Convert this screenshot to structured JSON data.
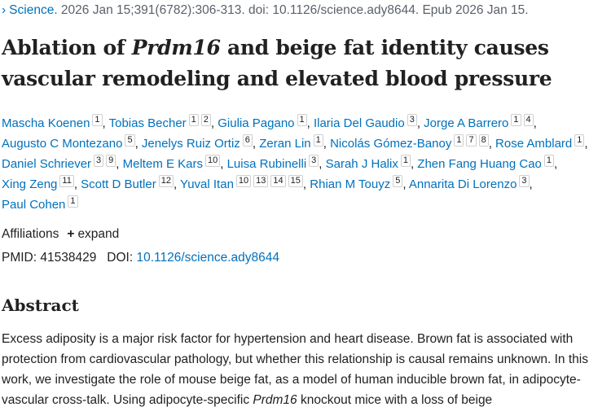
{
  "citation": {
    "journal": "Science.",
    "details": " 2026 Jan 15;391(6782):306-313. doi: 10.1126/science.ady8644. Epub 2026 Jan 15."
  },
  "title": {
    "before": "Ablation of ",
    "gene": "Prdm16",
    "after": " and beige fat identity causes vascular remodeling and elevated blood pressure"
  },
  "authors": [
    {
      "name": "Mascha Koenen",
      "affiliations": [
        "1"
      ]
    },
    {
      "name": "Tobias Becher",
      "affiliations": [
        "1",
        "2"
      ]
    },
    {
      "name": "Giulia Pagano",
      "affiliations": [
        "1"
      ]
    },
    {
      "name": "Ilaria Del Gaudio",
      "affiliations": [
        "3"
      ]
    },
    {
      "name": "Jorge A Barrero",
      "affiliations": [
        "1",
        "4"
      ]
    },
    {
      "name": "Augusto C Montezano",
      "affiliations": [
        "5"
      ]
    },
    {
      "name": "Jenelys Ruiz Ortiz",
      "affiliations": [
        "6"
      ]
    },
    {
      "name": "Zeran Lin",
      "affiliations": [
        "1"
      ]
    },
    {
      "name": "Nicolás Gómez-Banoy",
      "affiliations": [
        "1",
        "7",
        "8"
      ]
    },
    {
      "name": "Rose Amblard",
      "affiliations": [
        "1"
      ]
    },
    {
      "name": "Daniel Schriever",
      "affiliations": [
        "3",
        "9"
      ]
    },
    {
      "name": "Meltem E Kars",
      "affiliations": [
        "10"
      ]
    },
    {
      "name": "Luisa Rubinelli",
      "affiliations": [
        "3"
      ]
    },
    {
      "name": "Sarah J Halix",
      "affiliations": [
        "1"
      ]
    },
    {
      "name": "Zhen Fang Huang Cao",
      "affiliations": [
        "1"
      ]
    },
    {
      "name": "Xing Zeng",
      "affiliations": [
        "11"
      ]
    },
    {
      "name": "Scott D Butler",
      "affiliations": [
        "12"
      ]
    },
    {
      "name": "Yuval Itan",
      "affiliations": [
        "10",
        "13",
        "14",
        "15"
      ]
    },
    {
      "name": "Rhian M Touyz",
      "affiliations": [
        "5"
      ]
    },
    {
      "name": "Annarita Di Lorenzo",
      "affiliations": [
        "3"
      ]
    },
    {
      "name": "Paul Cohen",
      "affiliations": [
        "1"
      ]
    }
  ],
  "affiliations": {
    "label": "Affiliations",
    "toggle": "expand"
  },
  "ids": {
    "pmid_label": "PMID:",
    "pmid": "41538429",
    "doi_label": "DOI:",
    "doi": "10.1126/science.ady8644"
  },
  "abstract": {
    "heading": "Abstract",
    "text": [
      "Excess adiposity is a major risk factor for hypertension and heart disease. Brown fat is associated with protection from cardiovascular pathology, but whether this relationship is causal remains unknown. In this work, we investigate the role of mouse beige fat, as a model of human inducible brown fat, in adipocyte-vascular cross-talk. Using adipocyte-specific ",
      "Prdm16",
      " knockout mice with a loss of beige"
    ]
  }
}
